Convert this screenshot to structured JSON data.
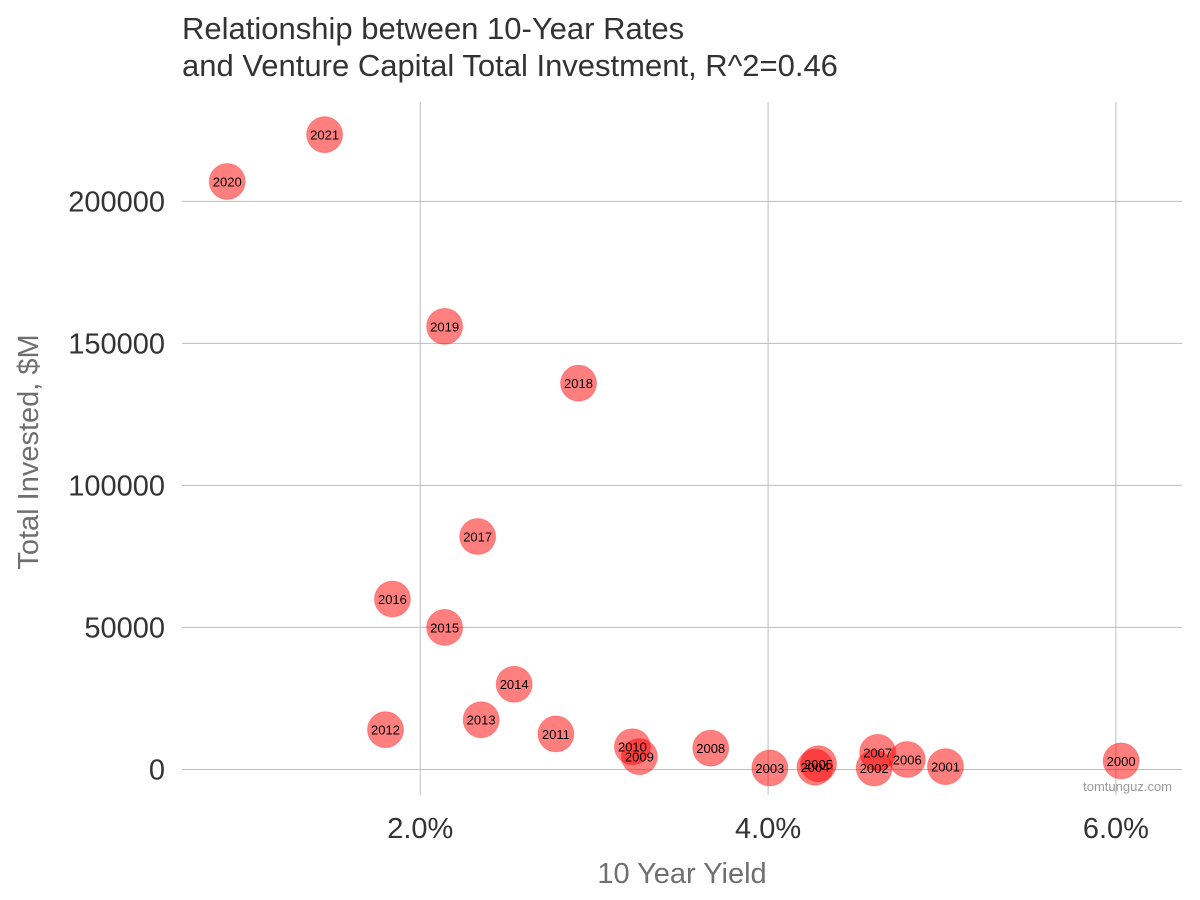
{
  "chart_data": {
    "type": "scatter",
    "title_lines": [
      "Relationship between 10-Year Rates",
      "and Venture Capital Total Investment, R^2=0.46"
    ],
    "xlabel": "10 Year Yield",
    "ylabel": "Total Invested, $M",
    "xlim": [
      0.0063,
      0.0638
    ],
    "ylim": [
      -9000,
      235000
    ],
    "x_ticks": [
      0.02,
      0.04,
      0.06
    ],
    "x_tick_labels": [
      "2.0%",
      "4.0%",
      "6.0%"
    ],
    "y_ticks": [
      0,
      50000,
      100000,
      150000,
      200000
    ],
    "y_tick_labels": [
      "0",
      "50000",
      "100000",
      "150000",
      "200000"
    ],
    "grid": true,
    "marker_color": "#ff0000",
    "points": [
      {
        "label": "2000",
        "x": 0.0603,
        "y": 3000
      },
      {
        "label": "2001",
        "x": 0.0502,
        "y": 1000
      },
      {
        "label": "2002",
        "x": 0.0461,
        "y": 500
      },
      {
        "label": "2003",
        "x": 0.0401,
        "y": 500
      },
      {
        "label": "2004",
        "x": 0.0427,
        "y": 800
      },
      {
        "label": "2005",
        "x": 0.0429,
        "y": 2000
      },
      {
        "label": "2006",
        "x": 0.048,
        "y": 3500
      },
      {
        "label": "2007",
        "x": 0.0463,
        "y": 6000
      },
      {
        "label": "2008",
        "x": 0.0367,
        "y": 7500
      },
      {
        "label": "2009",
        "x": 0.0326,
        "y": 4500
      },
      {
        "label": "2010",
        "x": 0.0322,
        "y": 8000
      },
      {
        "label": "2011",
        "x": 0.0278,
        "y": 12500
      },
      {
        "label": "2012",
        "x": 0.018,
        "y": 14000
      },
      {
        "label": "2013",
        "x": 0.0235,
        "y": 17500
      },
      {
        "label": "2014",
        "x": 0.0254,
        "y": 30000
      },
      {
        "label": "2015",
        "x": 0.0214,
        "y": 50000
      },
      {
        "label": "2016",
        "x": 0.0184,
        "y": 60000
      },
      {
        "label": "2017",
        "x": 0.0233,
        "y": 82000
      },
      {
        "label": "2018",
        "x": 0.0291,
        "y": 136000
      },
      {
        "label": "2019",
        "x": 0.0214,
        "y": 156000
      },
      {
        "label": "2020",
        "x": 0.0089,
        "y": 207000
      },
      {
        "label": "2021",
        "x": 0.0145,
        "y": 223500
      }
    ]
  },
  "watermark": "tomtunguz.com"
}
